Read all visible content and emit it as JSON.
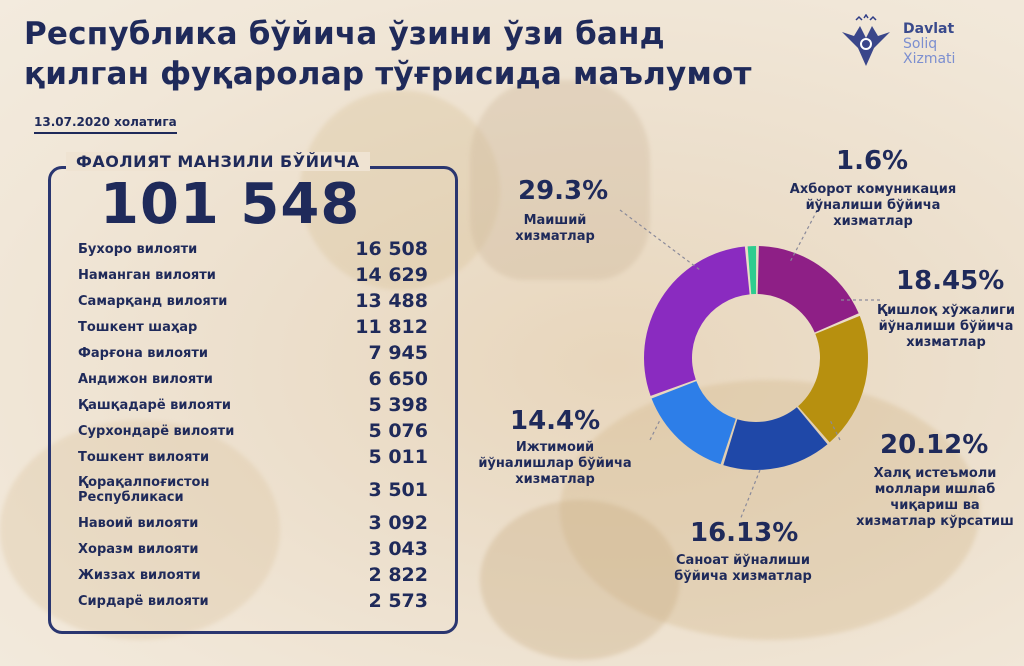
{
  "title_line1": "Республика бўйича ўзини ўзи банд",
  "title_line2": "қилган фуқаролар тўғрисида маълумот",
  "date": "13.07.2020 холатига",
  "logo": {
    "line1": "Davlat",
    "line2": "Soliq",
    "line3": "Xizmati"
  },
  "panel": {
    "heading": "ФАОЛИЯТ МАНЗИЛИ БЎЙИЧА",
    "total": "101 548",
    "regions": [
      {
        "name": "Бухоро вилояти",
        "value": "16 508"
      },
      {
        "name": "Наманган вилояти",
        "value": "14 629"
      },
      {
        "name": "Самарқанд вилояти",
        "value": "13 488"
      },
      {
        "name": "Тошкент шаҳар",
        "value": "11 812"
      },
      {
        "name": "Фарғона вилояти",
        "value": "7 945"
      },
      {
        "name": "Андижон вилояти",
        "value": "6 650"
      },
      {
        "name": "Қашқадарё вилояти",
        "value": "5 398"
      },
      {
        "name": "Сурхондарё вилояти",
        "value": "5 076"
      },
      {
        "name": "Тошкент вилояти",
        "value": "5 011"
      },
      {
        "name": "Қорақалпоғистон Республикаси",
        "value": "3 501"
      },
      {
        "name": "Навоий вилояти",
        "value": "3 092"
      },
      {
        "name": "Хоразм вилояти",
        "value": "3 043"
      },
      {
        "name": "Жиззах вилояти",
        "value": "2 822"
      },
      {
        "name": "Сирдарё вилояти",
        "value": "2 573"
      }
    ]
  },
  "chart_data": {
    "type": "pie",
    "donut": true,
    "categories": [
      "Ахборот комуникация йўналиши бўйича хизматлар",
      "Қишлоқ хўжалиги йўналиши бўйича хизматлар",
      "Халқ истеъмоли моллари ишлаб чиқариш ва хизматлар кўрсатиш",
      "Саноат йўналиши бўйича хизматлар",
      "Ижтимоий йўналишлар бўйича хизматлар",
      "Маиший хизматлар"
    ],
    "values": [
      1.6,
      18.45,
      20.12,
      16.13,
      14.4,
      29.3
    ],
    "labels": [
      "1.6%",
      "18.45%",
      "20.12%",
      "16.13%",
      "14.4%",
      "29.3%"
    ],
    "colors": [
      "#2ecc8f",
      "#8e1f86",
      "#b7900f",
      "#1f48a8",
      "#2d7ee8",
      "#8a2bc0"
    ]
  }
}
